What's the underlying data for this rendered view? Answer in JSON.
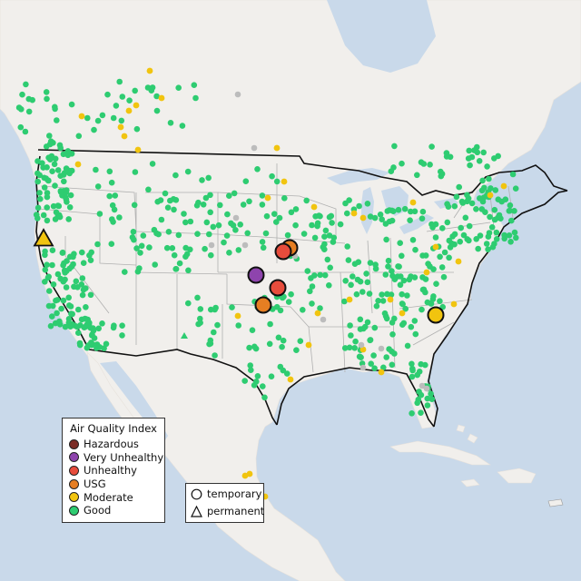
{
  "legend": {
    "title": "Air Quality Index",
    "categories": [
      {
        "label": "Hazardous",
        "color": "#7b2c26"
      },
      {
        "label": "Very Unhealthy",
        "color": "#8e44ad"
      },
      {
        "label": "Unhealthy",
        "color": "#e74c3c"
      },
      {
        "label": "USG",
        "color": "#e67e22"
      },
      {
        "label": "Moderate",
        "color": "#f1c40f"
      },
      {
        "label": "Good",
        "color": "#2ecc71"
      }
    ]
  },
  "monitor_types": [
    {
      "label": "temporary",
      "shape": "circle"
    },
    {
      "label": "permanent",
      "shape": "triangle"
    }
  ],
  "colors": {
    "water": "#c9d9ea",
    "land": "#f1efec",
    "state_line": "#b0b0b0",
    "border_line": "#111111",
    "no_data": "#bcbcbc"
  }
}
